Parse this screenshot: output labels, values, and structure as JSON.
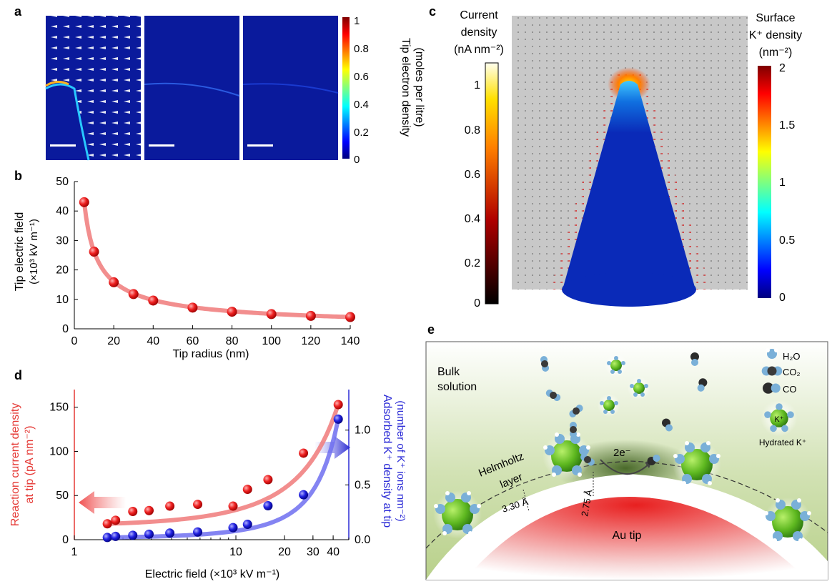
{
  "panel_labels": {
    "a": "a",
    "b": "b",
    "c": "c",
    "d": "d",
    "e": "e"
  },
  "colors": {
    "red": "#e53935",
    "red_line": "#f07a7a",
    "blue": "#2b2bd6",
    "blue_line": "#6f6ff0",
    "navy": "#0a1a8c",
    "grey_field": "#c8c8c8",
    "green": "#7fc43a"
  },
  "panel_a": {
    "colorbar_ticks": [
      "1",
      "0.8",
      "0.6",
      "0.4",
      "0.2",
      "0"
    ],
    "colorbar_label_line1": "Tip electron density",
    "colorbar_label_line2": "(moles per litre)"
  },
  "chart_data": [
    {
      "id": "b",
      "type": "scatter",
      "title": "",
      "xlabel": "Tip radius (nm)",
      "ylabel_line1": "Tip electric field",
      "ylabel_line2": "(×10³ kV m⁻¹)",
      "xlim": [
        0,
        140
      ],
      "ylim": [
        0,
        50
      ],
      "xticks": [
        0,
        20,
        40,
        60,
        80,
        100,
        120,
        140
      ],
      "yticks": [
        0,
        10,
        20,
        30,
        40,
        50
      ],
      "x": [
        5,
        10,
        20,
        30,
        40,
        60,
        80,
        100,
        120,
        140
      ],
      "y": [
        43,
        26.2,
        15.8,
        11.8,
        9.6,
        7.2,
        5.8,
        5.0,
        4.4,
        4.0
      ],
      "fit_curve": true
    },
    {
      "id": "d",
      "type": "scatter",
      "xscale": "log",
      "xlabel": "Electric field (×10³ kV m⁻¹)",
      "xlim": [
        1,
        50
      ],
      "xticks": [
        1,
        10,
        20,
        30,
        40
      ],
      "ylabel_left_line1": "Reaction current density",
      "ylabel_left_line2": "at tip (pA nm⁻²)",
      "ylabel_right_line1": "Adsorbed K⁺ density at tip",
      "ylabel_right_line2": "(number of K⁺ ions nm⁻²)",
      "ylim_left": [
        0,
        170
      ],
      "yticks_left": [
        0,
        50,
        100,
        150
      ],
      "ylim_right": [
        0,
        1.37
      ],
      "yticks_right": [
        "0.0",
        "0.5",
        "1.0"
      ],
      "yticks_right_values": [
        0,
        0.5,
        1.0
      ],
      "series": [
        {
          "name": "Reaction current density",
          "axis": "left",
          "color": "red",
          "x": [
            1.6,
            1.8,
            2.3,
            2.9,
            3.9,
            5.8,
            9.6,
            11.8,
            15.8,
            26.2,
            43
          ],
          "y": [
            18,
            22,
            32,
            33,
            38,
            40,
            38,
            57,
            68,
            98,
            153
          ]
        },
        {
          "name": "Adsorbed K⁺ density",
          "axis": "right",
          "color": "blue",
          "x": [
            1.6,
            1.8,
            2.3,
            2.9,
            3.9,
            5.8,
            9.6,
            11.8,
            15.8,
            26.2,
            43
          ],
          "y": [
            0.02,
            0.03,
            0.04,
            0.05,
            0.06,
            0.07,
            0.11,
            0.14,
            0.31,
            0.41,
            1.1
          ]
        }
      ]
    }
  ],
  "panel_c": {
    "left_bar_title": [
      "Current",
      "density",
      "(nA nm⁻²)"
    ],
    "left_bar_ticks": [
      "1",
      "0.8",
      "0.6",
      "0.4",
      "0.2",
      "0"
    ],
    "right_bar_title": [
      "Surface",
      "K⁺ density",
      "(nm⁻²)"
    ],
    "right_bar_ticks": [
      "2",
      "1.5",
      "1",
      "0.5",
      "0"
    ]
  },
  "panel_e": {
    "bulk_solution": [
      "Bulk",
      "solution"
    ],
    "helmholtz": [
      "Helmholtz",
      "layer"
    ],
    "dist1": "3.30 Å",
    "dist2": "2.75 Å",
    "electrons": "2e⁻",
    "au_tip": "Au tip",
    "legend": {
      "h2o": "H₂O",
      "co2": "CO₂",
      "co": "CO",
      "k_label": "K⁺",
      "hydrated": "Hydrated K⁺"
    }
  }
}
